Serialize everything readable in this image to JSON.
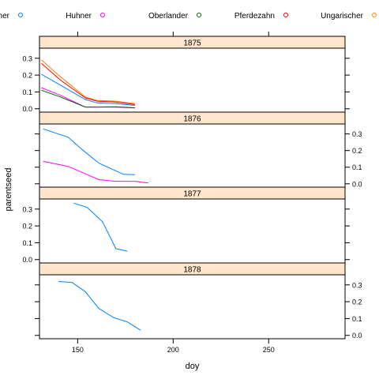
{
  "chart_data": {
    "type": "line",
    "layout": "lattice",
    "xlabel": "doy",
    "ylabel": "parentseed",
    "xlim": [
      130,
      290
    ],
    "ylim": [
      -0.02,
      0.36
    ],
    "x_ticks": [
      150,
      200,
      250
    ],
    "y_ticks": [
      0.0,
      0.1,
      0.2,
      0.3
    ],
    "legend_position": "top",
    "series_keys": [
      {
        "name": "Badischer",
        "label": "adischer",
        "color": "#0080ff"
      },
      {
        "name": "Huhner",
        "label": "Huhner",
        "color": "#ff00ff"
      },
      {
        "name": "Oberlander",
        "label": "Oberlander",
        "color": "#006400"
      },
      {
        "name": "Pferdezahn",
        "label": "Pferdezahn",
        "color": "#ff0000"
      },
      {
        "name": "Ungarischer",
        "label": "Ungarischer",
        "color": "#ff8000"
      }
    ],
    "strip_color": "#ffe5cc",
    "panels": [
      {
        "label": "1875",
        "series": [
          {
            "name": "Ungarischer",
            "x": [
              131,
              141,
              154,
              160,
              170,
              180
            ],
            "y": [
              0.29,
              0.19,
              0.07,
              0.05,
              0.045,
              0.03
            ]
          },
          {
            "name": "Pferdezahn",
            "x": [
              131,
              141,
              154,
              160,
              170,
              180
            ],
            "y": [
              0.27,
              0.17,
              0.065,
              0.045,
              0.04,
              0.025
            ]
          },
          {
            "name": "Badischer",
            "x": [
              131,
              141,
              154,
              160,
              170,
              180
            ],
            "y": [
              0.205,
              0.14,
              0.055,
              0.035,
              0.03,
              0.02
            ]
          },
          {
            "name": "Huhner",
            "x": [
              131,
              141,
              154,
              160,
              170,
              180
            ],
            "y": [
              0.125,
              0.08,
              0.01,
              0.01,
              0.01,
              0.005
            ]
          },
          {
            "name": "Oberlander",
            "x": [
              131,
              141,
              154,
              160,
              170,
              180
            ],
            "y": [
              0.11,
              0.07,
              0.01,
              0.01,
              0.012,
              0.006
            ]
          }
        ]
      },
      {
        "label": "1876",
        "series": [
          {
            "name": "Badischer",
            "x": [
              132,
              145,
              153,
              161,
              174,
              180
            ],
            "y": [
              0.33,
              0.28,
              0.2,
              0.125,
              0.057,
              0.055
            ]
          },
          {
            "name": "Huhner",
            "x": [
              132,
              145,
              153,
              161,
              170,
              180,
              187
            ],
            "y": [
              0.135,
              0.105,
              0.065,
              0.025,
              0.015,
              0.015,
              0.005
            ]
          }
        ]
      },
      {
        "label": "1877",
        "series": [
          {
            "name": "Badischer",
            "x": [
              148,
              155,
              163,
              170,
              176
            ],
            "y": [
              0.335,
              0.31,
              0.225,
              0.065,
              0.05
            ]
          }
        ]
      },
      {
        "label": "1878",
        "series": [
          {
            "name": "Badischer",
            "x": [
              140,
              147,
              154,
              161,
              169,
              176,
              183
            ],
            "y": [
              0.32,
              0.315,
              0.26,
              0.16,
              0.105,
              0.08,
              0.03
            ]
          }
        ]
      }
    ]
  }
}
